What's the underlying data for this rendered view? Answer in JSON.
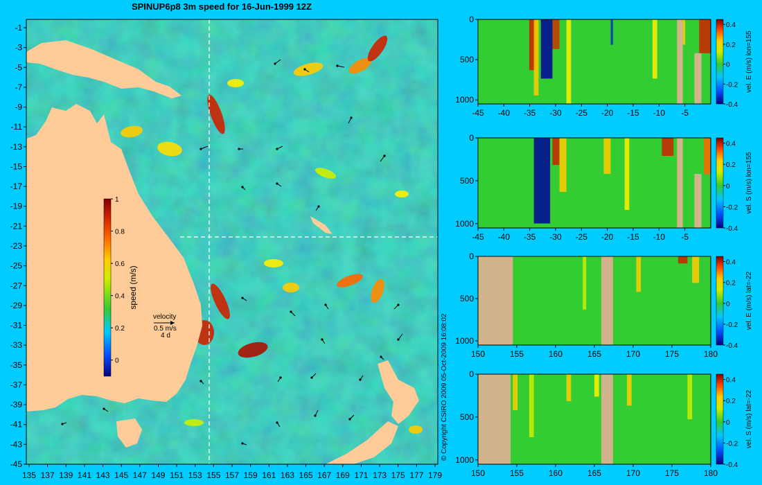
{
  "title": "SPINUP6p8 3m speed for 16-Jun-1999 12Z",
  "copyright": "© Copyright CSIRO 2009   05-Oct-2009 16:08:02",
  "map": {
    "x_ticks": [
      "135",
      "137",
      "139",
      "141",
      "143",
      "145",
      "147",
      "149",
      "151",
      "153",
      "155",
      "157",
      "159",
      "161",
      "163",
      "165",
      "167",
      "169",
      "171",
      "173",
      "175",
      "177",
      "179"
    ],
    "y_ticks": [
      "-1",
      "-3",
      "-5",
      "-7",
      "-9",
      "-11",
      "-13",
      "-15",
      "-17",
      "-19",
      "-21",
      "-23",
      "-25",
      "-27",
      "-29",
      "-31",
      "-33",
      "-35",
      "-37",
      "-39",
      "-41",
      "-43",
      "-45"
    ],
    "section_lon": 155,
    "section_lat": -22,
    "colorbar": {
      "label": "speed (m/s)",
      "ticks": [
        "1",
        "0.8",
        "0.6",
        "0.4",
        "0.2",
        "0"
      ],
      "min": -0.1,
      "max": 1.0
    },
    "velocity_key": {
      "title": "velocity",
      "speed": "0.5 m/s",
      "duration": "4 d"
    },
    "colors": {
      "land": "#ffcc99",
      "ocean_low": "#3399ff",
      "ocean_mid": "#33cc33",
      "ocean_high": "#cc2200"
    }
  },
  "chart_data": [
    {
      "type": "heatmap",
      "quantity": "vel. E (m/s) lon=155",
      "xlabel": "",
      "ylabel": "",
      "x_ticks": [
        "-45",
        "-40",
        "-35",
        "-30",
        "-25",
        "-20",
        "-15",
        "-10",
        "-5"
      ],
      "y_ticks": [
        "0",
        "500",
        "1000"
      ],
      "xlim": [
        -45,
        0
      ],
      "ylim": [
        1050,
        0
      ],
      "colorbar_ticks": [
        "0.4",
        "0.2",
        "0",
        "-0.2",
        "-0.4"
      ],
      "clim": [
        -0.4,
        0.45
      ]
    },
    {
      "type": "heatmap",
      "quantity": "vel. S (m/s) lon=155",
      "xlabel": "",
      "ylabel": "",
      "x_ticks": [
        "-45",
        "-40",
        "-35",
        "-30",
        "-25",
        "-20",
        "-15",
        "-10",
        "-5"
      ],
      "y_ticks": [
        "0",
        "500",
        "1000"
      ],
      "xlim": [
        -45,
        0
      ],
      "ylim": [
        1050,
        0
      ],
      "colorbar_ticks": [
        "0.4",
        "0.2",
        "0",
        "-0.2",
        "-0.4"
      ],
      "clim": [
        -0.4,
        0.45
      ]
    },
    {
      "type": "heatmap",
      "quantity": "vel. E (m/s) lat=-22",
      "xlabel": "",
      "ylabel": "",
      "x_ticks": [
        "150",
        "155",
        "160",
        "165",
        "170",
        "175",
        "180"
      ],
      "y_ticks": [
        "0",
        "500",
        "1000"
      ],
      "xlim": [
        150,
        180
      ],
      "ylim": [
        1050,
        0
      ],
      "colorbar_ticks": [
        "0.4",
        "0.2",
        "0",
        "-0.2",
        "-0.4"
      ],
      "clim": [
        -0.4,
        0.45
      ]
    },
    {
      "type": "heatmap",
      "quantity": "vel. S (m/s) lat=-22",
      "xlabel": "",
      "ylabel": "",
      "x_ticks": [
        "150",
        "155",
        "160",
        "165",
        "170",
        "175",
        "180"
      ],
      "y_ticks": [
        "0",
        "500",
        "1000"
      ],
      "xlim": [
        150,
        180
      ],
      "ylim": [
        1050,
        0
      ],
      "colorbar_ticks": [
        "0.4",
        "0.2",
        "0",
        "-0.2",
        "-0.4"
      ],
      "clim": [
        -0.4,
        0.45
      ]
    }
  ]
}
